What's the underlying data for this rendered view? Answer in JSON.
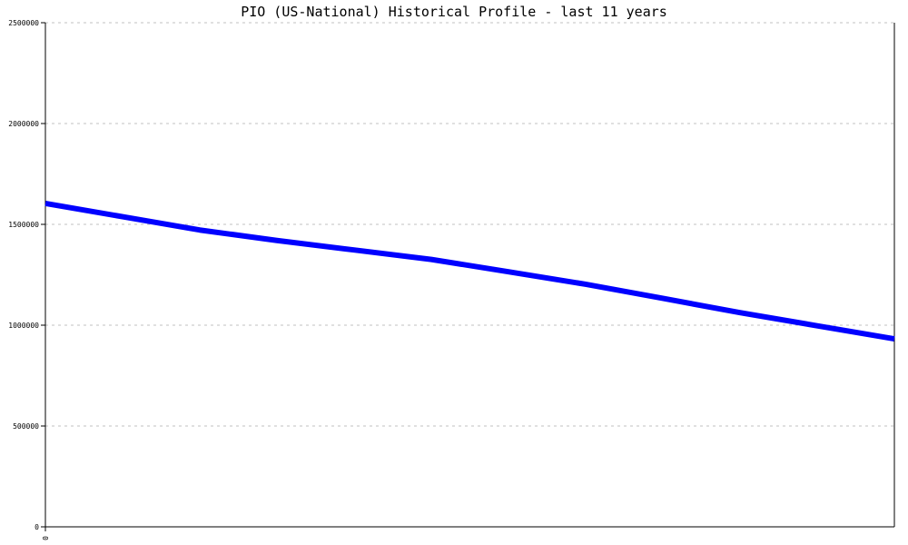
{
  "chart_data": {
    "type": "line",
    "title": "PIO (US-National) Historical Profile - last 11 years",
    "xlabel": "",
    "ylabel": "",
    "ylim": [
      0,
      2500000
    ],
    "yticks": [
      "0",
      "500000",
      "1000000",
      "1500000",
      "2000000",
      "2500000"
    ],
    "xticks": [
      "0"
    ],
    "grid": "horizontal dotted",
    "line_color": "#0000ff",
    "grid_color": "#c0c0c0",
    "values": [
      1604000,
      1538000,
      1472000,
      1420000,
      1373000,
      1326000,
      1265000,
      1203000,
      1133000,
      1062000,
      997000,
      932000
    ]
  }
}
